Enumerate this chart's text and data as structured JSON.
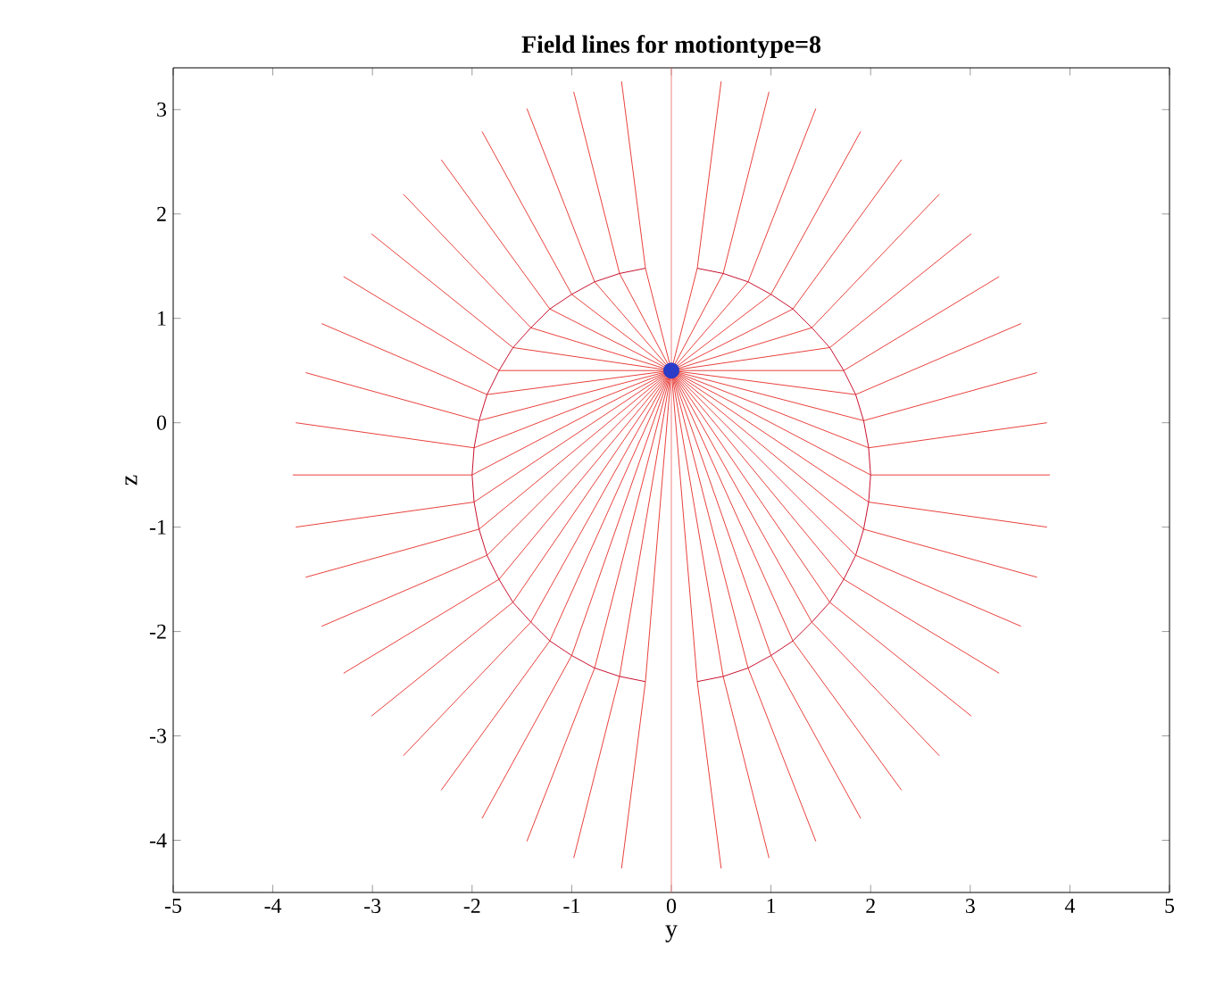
{
  "chart_data": {
    "type": "line",
    "title": "Field lines for motiontype=8",
    "xlabel": "y",
    "ylabel": "z",
    "xlim": [
      -5,
      5
    ],
    "ylim": [
      -4.5,
      3.4
    ],
    "xticks": [
      -5,
      -4,
      -3,
      -2,
      -1,
      0,
      1,
      2,
      3,
      4,
      5
    ],
    "yticks": [
      -4,
      -3,
      -2,
      -1,
      0,
      1,
      2,
      3
    ],
    "color": "#e8403c",
    "ref_lines": [
      {
        "axis": "x",
        "value": 0,
        "color": "#f08080"
      }
    ],
    "series": [
      {
        "x": [
          0,
          2,
          3.8
        ],
        "values": [
          0.5,
          -0.5,
          -0.5
        ]
      },
      {
        "x": [
          0,
          1.98,
          3.77
        ],
        "values": [
          0.5,
          -0.24,
          0.0
        ]
      },
      {
        "x": [
          0,
          1.93,
          3.67
        ],
        "values": [
          0.5,
          0.02,
          0.48
        ]
      },
      {
        "x": [
          0,
          1.85,
          3.51
        ],
        "values": [
          0.5,
          0.27,
          0.95
        ]
      },
      {
        "x": [
          0,
          1.73,
          3.29
        ],
        "values": [
          0.5,
          0.5,
          1.4
        ]
      },
      {
        "x": [
          0,
          1.59,
          3.01
        ],
        "values": [
          0.5,
          0.72,
          1.81
        ]
      },
      {
        "x": [
          0,
          1.41,
          2.69
        ],
        "values": [
          0.5,
          0.91,
          2.19
        ]
      },
      {
        "x": [
          0,
          1.22,
          2.31
        ],
        "values": [
          0.5,
          1.09,
          2.52
        ]
      },
      {
        "x": [
          0,
          1,
          1.9
        ],
        "values": [
          0.5,
          1.23,
          2.79
        ]
      },
      {
        "x": [
          0,
          0.77,
          1.45
        ],
        "values": [
          0.5,
          1.35,
          3.01
        ]
      },
      {
        "x": [
          0,
          0.52,
          0.98
        ],
        "values": [
          0.5,
          1.43,
          3.17
        ]
      },
      {
        "x": [
          0,
          0.26,
          0.5
        ],
        "values": [
          0.5,
          1.48,
          3.27
        ]
      },
      {
        "x": [
          0,
          -0.26,
          -0.5
        ],
        "values": [
          0.5,
          1.48,
          3.27
        ]
      },
      {
        "x": [
          0,
          -0.52,
          -0.98
        ],
        "values": [
          0.5,
          1.43,
          3.17
        ]
      },
      {
        "x": [
          0,
          -0.77,
          -1.45
        ],
        "values": [
          0.5,
          1.35,
          3.01
        ]
      },
      {
        "x": [
          0,
          -1,
          -1.9
        ],
        "values": [
          0.5,
          1.23,
          2.79
        ]
      },
      {
        "x": [
          0,
          -1.22,
          -2.31
        ],
        "values": [
          0.5,
          1.09,
          2.52
        ]
      },
      {
        "x": [
          0,
          -1.41,
          -2.69
        ],
        "values": [
          0.5,
          0.91,
          2.19
        ]
      },
      {
        "x": [
          0,
          -1.59,
          -3.01
        ],
        "values": [
          0.5,
          0.72,
          1.81
        ]
      },
      {
        "x": [
          0,
          -1.73,
          -3.29
        ],
        "values": [
          0.5,
          0.5,
          1.4
        ]
      },
      {
        "x": [
          0,
          -1.85,
          -3.51
        ],
        "values": [
          0.5,
          0.27,
          0.95
        ]
      },
      {
        "x": [
          0,
          -1.93,
          -3.67
        ],
        "values": [
          0.5,
          0.02,
          0.48
        ]
      },
      {
        "x": [
          0,
          -1.98,
          -3.77
        ],
        "values": [
          0.5,
          -0.24,
          0.0
        ]
      },
      {
        "x": [
          0,
          -2,
          -3.8
        ],
        "values": [
          0.5,
          -0.5,
          -0.5
        ]
      },
      {
        "x": [
          0,
          -1.98,
          -3.77
        ],
        "values": [
          0.5,
          -0.76,
          -1.0
        ]
      },
      {
        "x": [
          0,
          -1.93,
          -3.67
        ],
        "values": [
          0.5,
          -1.02,
          -1.48
        ]
      },
      {
        "x": [
          0,
          -1.85,
          -3.51
        ],
        "values": [
          0.5,
          -1.27,
          -1.95
        ]
      },
      {
        "x": [
          0,
          -1.73,
          -3.29
        ],
        "values": [
          0.5,
          -1.5,
          -2.4
        ]
      },
      {
        "x": [
          0,
          -1.59,
          -3.01
        ],
        "values": [
          0.5,
          -1.72,
          -2.81
        ]
      },
      {
        "x": [
          0,
          -1.41,
          -2.69
        ],
        "values": [
          0.5,
          -1.91,
          -3.19
        ]
      },
      {
        "x": [
          0,
          -1.22,
          -2.31
        ],
        "values": [
          0.5,
          -2.09,
          -3.52
        ]
      },
      {
        "x": [
          0,
          -1,
          -1.9
        ],
        "values": [
          0.5,
          -2.23,
          -3.79
        ]
      },
      {
        "x": [
          0,
          -0.77,
          -1.45
        ],
        "values": [
          0.5,
          -2.35,
          -4.01
        ]
      },
      {
        "x": [
          0,
          -0.52,
          -0.98
        ],
        "values": [
          0.5,
          -2.43,
          -4.17
        ]
      },
      {
        "x": [
          0,
          -0.26,
          -0.5
        ],
        "values": [
          0.5,
          -2.48,
          -4.27
        ]
      },
      {
        "x": [
          0,
          0.26,
          0.5
        ],
        "values": [
          0.5,
          -2.48,
          -4.27
        ]
      },
      {
        "x": [
          0,
          0.52,
          0.98
        ],
        "values": [
          0.5,
          -2.43,
          -4.17
        ]
      },
      {
        "x": [
          0,
          0.77,
          1.45
        ],
        "values": [
          0.5,
          -2.35,
          -4.01
        ]
      },
      {
        "x": [
          0,
          1,
          1.9
        ],
        "values": [
          0.5,
          -2.23,
          -3.79
        ]
      },
      {
        "x": [
          0,
          1.22,
          2.31
        ],
        "values": [
          0.5,
          -2.09,
          -3.52
        ]
      },
      {
        "x": [
          0,
          1.41,
          2.69
        ],
        "values": [
          0.5,
          -1.91,
          -3.19
        ]
      },
      {
        "x": [
          0,
          1.59,
          3.01
        ],
        "values": [
          0.5,
          -1.72,
          -2.81
        ]
      },
      {
        "x": [
          0,
          1.73,
          3.29
        ],
        "values": [
          0.5,
          -1.5,
          -2.4
        ]
      },
      {
        "x": [
          0,
          1.85,
          3.51
        ],
        "values": [
          0.5,
          -1.27,
          -1.95
        ]
      },
      {
        "x": [
          0,
          1.93,
          3.67
        ],
        "values": [
          0.5,
          -1.02,
          -1.48
        ]
      },
      {
        "x": [
          0,
          1.98,
          3.77
        ],
        "values": [
          0.5,
          -0.76,
          -1.0
        ]
      },
      {
        "color": "#c8102e",
        "x": [
          0.26,
          0.52,
          0.77,
          1,
          1.22,
          1.41,
          1.59,
          1.73,
          1.85,
          1.93,
          1.98,
          2,
          1.98,
          1.93,
          1.85,
          1.73,
          1.59,
          1.41,
          1.22,
          1,
          0.77,
          0.52,
          0.26
        ],
        "values": [
          -2.48,
          -2.43,
          -2.35,
          -2.23,
          -2.09,
          -1.91,
          -1.72,
          -1.5,
          -1.27,
          -1.02,
          -0.76,
          -0.5,
          -0.24,
          0.02,
          0.27,
          0.5,
          0.72,
          0.91,
          1.09,
          1.23,
          1.35,
          1.43,
          1.48
        ]
      },
      {
        "color": "#c8102e",
        "x": [
          -0.26,
          -0.52,
          -0.77,
          -1,
          -1.22,
          -1.41,
          -1.59,
          -1.73,
          -1.85,
          -1.93,
          -1.98,
          -2,
          -1.98,
          -1.93,
          -1.85,
          -1.73,
          -1.59,
          -1.41,
          -1.22,
          -1,
          -0.77,
          -0.52,
          -0.26
        ],
        "values": [
          1.48,
          1.43,
          1.35,
          1.23,
          1.09,
          0.91,
          0.72,
          0.5,
          0.27,
          0.02,
          -0.24,
          -0.5,
          -0.76,
          -1.02,
          -1.27,
          -1.5,
          -1.72,
          -1.91,
          -2.09,
          -2.23,
          -2.35,
          -2.43,
          -2.48
        ]
      },
      {
        "type": "scatter",
        "color": "#2a3cc8",
        "x": [
          0
        ],
        "values": [
          0.5
        ]
      }
    ]
  }
}
